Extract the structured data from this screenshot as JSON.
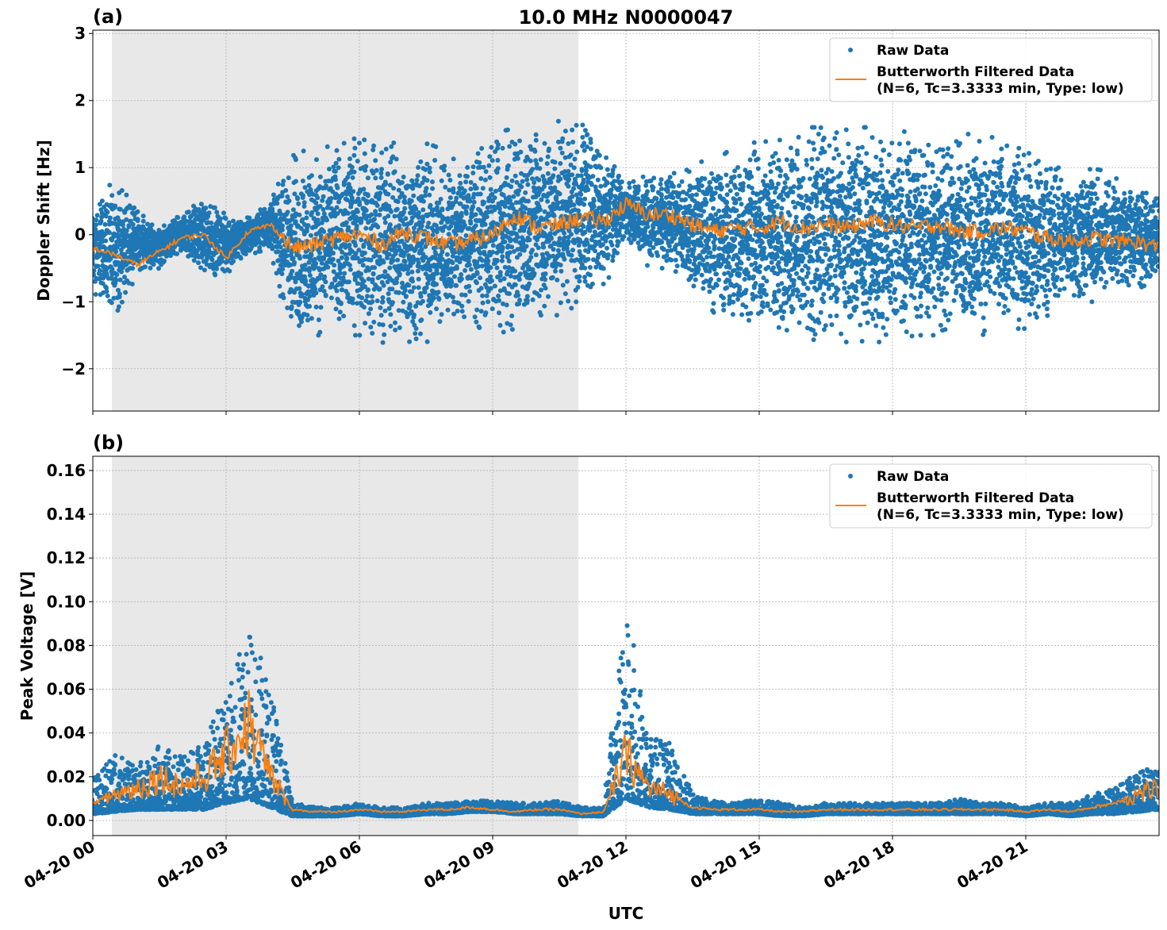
{
  "chart_data": [
    {
      "type": "scatter",
      "panel_label": "(a)",
      "title": "10.0 MHz N0000047",
      "xlabel": "",
      "ylabel": "Doppler Shift [Hz]",
      "xlim": [
        "04-20 00",
        "04-21 00"
      ],
      "ylim": [
        -2.63,
        3.05
      ],
      "yticks": [
        -2,
        -1,
        0,
        1,
        2,
        3
      ],
      "ytick_labels": [
        "−2",
        "−1",
        "0",
        "1",
        "2",
        "3"
      ],
      "grid": true,
      "legend_placement": "top-right",
      "shaded_region_utc_hours": [
        0.43,
        10.93
      ],
      "shade_color": "#e8e8e8",
      "hours": [
        0,
        0.5,
        1,
        1.5,
        2,
        2.5,
        3,
        3.5,
        4,
        4.5,
        5,
        5.5,
        6,
        6.5,
        7,
        7.5,
        8,
        8.5,
        9,
        9.5,
        10,
        10.5,
        11,
        11.5,
        12,
        12.5,
        13,
        13.5,
        14,
        14.5,
        15,
        15.5,
        16,
        16.5,
        17,
        17.5,
        18,
        18.5,
        19,
        19.5,
        20,
        20.5,
        21,
        21.5,
        22,
        22.5,
        23,
        23.5,
        24
      ],
      "series": [
        {
          "name": "Raw Data",
          "color": "#1f77b4",
          "kind": "points",
          "lower": [
            -0.9,
            -1.2,
            -0.6,
            -0.5,
            -0.3,
            -0.6,
            -0.6,
            -0.3,
            -0.2,
            -1.8,
            -1.5,
            -1.5,
            -1.5,
            -1.6,
            -1.8,
            -1.6,
            -1.5,
            -1.3,
            -1.5,
            -1.4,
            -1.2,
            -1.2,
            -1.0,
            -0.8,
            0.0,
            -0.5,
            -0.5,
            -0.8,
            -1.2,
            -1.4,
            -1.4,
            -1.5,
            -1.6,
            -1.6,
            -1.6,
            -1.6,
            -1.6,
            -1.5,
            -1.5,
            -1.5,
            -1.5,
            -1.4,
            -1.4,
            -1.2,
            -1.0,
            -1.0,
            -0.9,
            -0.8,
            -0.7
          ],
          "upper": [
            0.5,
            0.8,
            0.4,
            0.1,
            0.3,
            0.6,
            0.3,
            0.3,
            0.5,
            1.3,
            1.2,
            1.4,
            1.5,
            1.4,
            1.5,
            1.4,
            1.2,
            1.2,
            1.5,
            1.6,
            1.5,
            1.7,
            1.8,
            1.4,
            0.8,
            0.9,
            0.9,
            1.0,
            1.2,
            1.3,
            1.4,
            1.5,
            1.6,
            1.6,
            1.6,
            1.6,
            1.6,
            1.5,
            1.5,
            1.5,
            1.5,
            1.4,
            1.3,
            1.1,
            1.0,
            1.0,
            0.9,
            0.7,
            0.6
          ]
        },
        {
          "name": "Butterworth Filtered Data\n(N=6, Tc=3.3333 min, Type: low)",
          "color": "#ff7f0e",
          "kind": "line",
          "values": [
            -0.2,
            -0.3,
            -0.45,
            -0.25,
            -0.05,
            0.0,
            -0.35,
            0.05,
            0.15,
            -0.2,
            -0.15,
            -0.05,
            0.0,
            -0.15,
            0.05,
            -0.05,
            -0.15,
            -0.1,
            0.0,
            0.3,
            0.1,
            0.15,
            0.25,
            0.2,
            0.45,
            0.3,
            0.3,
            0.15,
            0.05,
            0.1,
            0.1,
            0.2,
            0.1,
            0.15,
            0.1,
            0.2,
            0.15,
            0.1,
            0.15,
            0.05,
            0.05,
            0.1,
            0.05,
            -0.05,
            -0.1,
            -0.05,
            -0.1,
            -0.1,
            -0.2
          ]
        }
      ]
    },
    {
      "type": "scatter",
      "panel_label": "(b)",
      "title": "",
      "xlabel": "UTC",
      "ylabel": "Peak Voltage [V]",
      "xlim": [
        "04-20 00",
        "04-21 00"
      ],
      "ylim": [
        -0.0069,
        0.1665
      ],
      "yticks": [
        0,
        0.02,
        0.04,
        0.06,
        0.08,
        0.1,
        0.12,
        0.14,
        0.16
      ],
      "ytick_labels": [
        "0.00",
        "0.02",
        "0.04",
        "0.06",
        "0.08",
        "0.10",
        "0.12",
        "0.14",
        "0.16"
      ],
      "xticks_hours": [
        0,
        3,
        6,
        9,
        12,
        15,
        18,
        21
      ],
      "xtick_labels": [
        "04-20 00",
        "04-20 03",
        "04-20 06",
        "04-20 09",
        "04-20 12",
        "04-20 15",
        "04-20 18",
        "04-20 21"
      ],
      "grid": true,
      "legend_placement": "top-right",
      "shaded_region_utc_hours": [
        0.43,
        10.93
      ],
      "hours": [
        0,
        0.5,
        1,
        1.5,
        2,
        2.5,
        3,
        3.5,
        4,
        4.5,
        5,
        5.5,
        6,
        6.5,
        7,
        7.5,
        8,
        8.5,
        9,
        9.5,
        10,
        10.5,
        11,
        11.5,
        12,
        12.5,
        13,
        13.5,
        14,
        14.5,
        15,
        15.5,
        16,
        16.5,
        17,
        17.5,
        18,
        18.5,
        19,
        19.5,
        20,
        20.5,
        21,
        21.5,
        22,
        22.5,
        23,
        23.5,
        24
      ],
      "series": [
        {
          "name": "Raw Data",
          "color": "#1f77b4",
          "kind": "points",
          "lower": [
            0.003,
            0.004,
            0.005,
            0.005,
            0.005,
            0.005,
            0.008,
            0.01,
            0.006,
            0.002,
            0.002,
            0.002,
            0.003,
            0.002,
            0.002,
            0.003,
            0.003,
            0.004,
            0.004,
            0.003,
            0.003,
            0.003,
            0.002,
            0.002,
            0.01,
            0.006,
            0.005,
            0.003,
            0.003,
            0.003,
            0.003,
            0.002,
            0.002,
            0.003,
            0.003,
            0.003,
            0.003,
            0.003,
            0.003,
            0.003,
            0.003,
            0.003,
            0.002,
            0.003,
            0.002,
            0.003,
            0.003,
            0.004,
            0.005
          ],
          "upper": [
            0.02,
            0.03,
            0.025,
            0.035,
            0.03,
            0.035,
            0.06,
            0.09,
            0.06,
            0.008,
            0.006,
            0.006,
            0.008,
            0.006,
            0.006,
            0.008,
            0.008,
            0.009,
            0.009,
            0.008,
            0.008,
            0.009,
            0.006,
            0.006,
            0.1,
            0.04,
            0.035,
            0.012,
            0.009,
            0.008,
            0.01,
            0.008,
            0.006,
            0.008,
            0.008,
            0.008,
            0.008,
            0.008,
            0.008,
            0.01,
            0.008,
            0.008,
            0.006,
            0.008,
            0.008,
            0.012,
            0.015,
            0.022,
            0.025
          ]
        },
        {
          "name": "Butterworth Filtered Data\n(N=6, Tc=3.3333 min, Type: low)",
          "color": "#ff7f0e",
          "kind": "line",
          "values": [
            0.008,
            0.012,
            0.015,
            0.02,
            0.016,
            0.02,
            0.03,
            0.045,
            0.02,
            0.005,
            0.004,
            0.004,
            0.005,
            0.004,
            0.004,
            0.005,
            0.005,
            0.006,
            0.005,
            0.004,
            0.005,
            0.005,
            0.003,
            0.004,
            0.03,
            0.015,
            0.012,
            0.006,
            0.005,
            0.005,
            0.005,
            0.004,
            0.004,
            0.005,
            0.005,
            0.005,
            0.005,
            0.005,
            0.005,
            0.005,
            0.005,
            0.005,
            0.004,
            0.005,
            0.004,
            0.006,
            0.008,
            0.012,
            0.015
          ]
        }
      ]
    }
  ]
}
